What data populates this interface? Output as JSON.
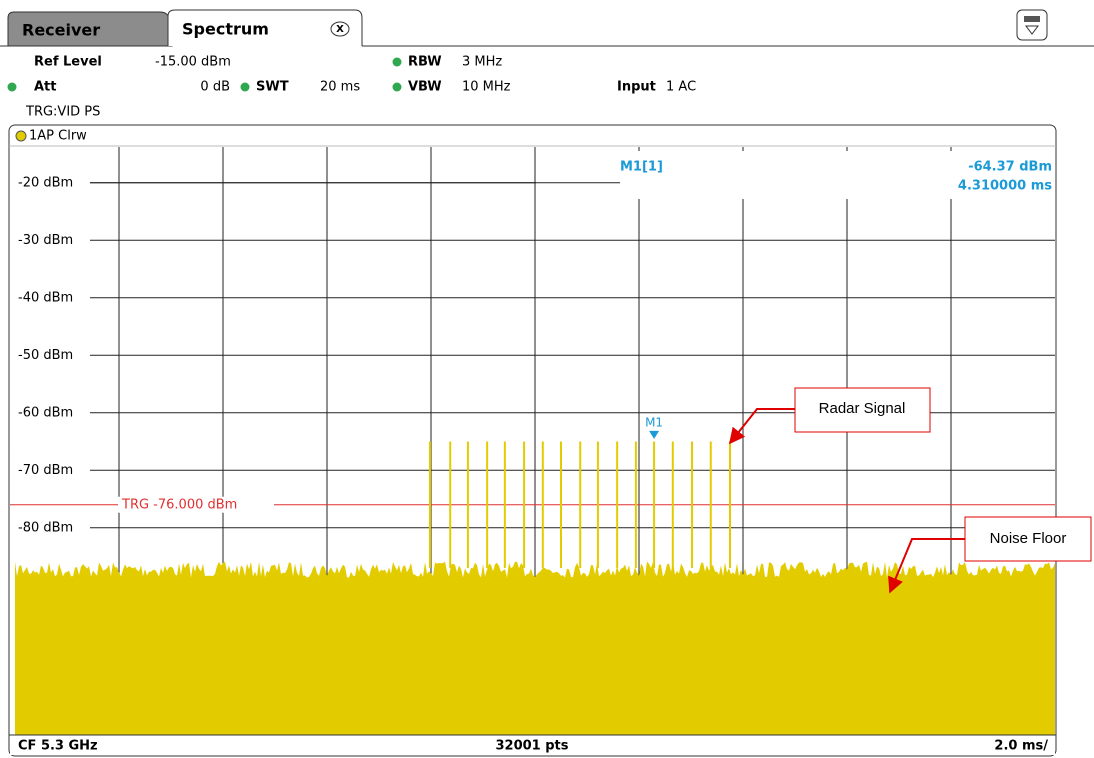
{
  "tabs": [
    "Receiver",
    "Spectrum"
  ],
  "settings": {
    "ref_level_label": "Ref Level",
    "ref_level": "-15.00 dBm",
    "rbw_label": "RBW",
    "rbw": "3 MHz",
    "att_label": "Att",
    "att": "0 dB",
    "swt_label": "SWT",
    "swt": "20 ms",
    "vbw_label": "VBW",
    "vbw": "10 MHz",
    "input_label": "Input",
    "input": "1 AC",
    "trigger": "TRG:VID PS"
  },
  "chart_data": {
    "type": "spectrum",
    "trace_label": "1AP Clrw",
    "color": "#e2cc00",
    "xlim": [
      0,
      20
    ],
    "xticks": [
      2,
      4,
      6,
      8,
      10,
      12,
      14,
      16,
      18
    ],
    "ylim": [
      -115,
      -15
    ],
    "yticks": [
      {
        "value": -20,
        "label": "-20 dBm"
      },
      {
        "value": -30,
        "label": "-30 dBm"
      },
      {
        "value": -40,
        "label": "-40 dBm"
      },
      {
        "value": -50,
        "label": "-50 dBm"
      },
      {
        "value": -60,
        "label": "-60 dBm"
      },
      {
        "value": -70,
        "label": "-70 dBm"
      },
      {
        "value": -80,
        "label": "-80 dBm"
      }
    ],
    "pulses": {
      "x": [
        7.98,
        8.37,
        8.71,
        9.08,
        9.42,
        9.79,
        10.15,
        10.5,
        10.87,
        11.21,
        11.58,
        11.94,
        12.29,
        12.65,
        13.02,
        13.38,
        13.75
      ],
      "values": [
        -65,
        -65,
        -65,
        -65,
        -65,
        -65,
        -65,
        -65,
        -65,
        -65,
        -65,
        -65,
        -65,
        -65,
        -65,
        -65,
        -65
      ]
    },
    "noise_floor": -87,
    "trigger": {
      "value": -76,
      "label": "TRG -76.000 dBm"
    },
    "marker": {
      "name": "M1",
      "readout_label": "M1[1]",
      "level": "-64.37 dBm",
      "time": "4.310000 ms",
      "x": 12.29,
      "value": -64.37
    },
    "footer": {
      "center_frequency": "CF 5.3 GHz",
      "points": "32001 pts",
      "sweep_scale": "2.0 ms/"
    }
  },
  "annotations": [
    "Radar Signal",
    "Noise Floor"
  ]
}
